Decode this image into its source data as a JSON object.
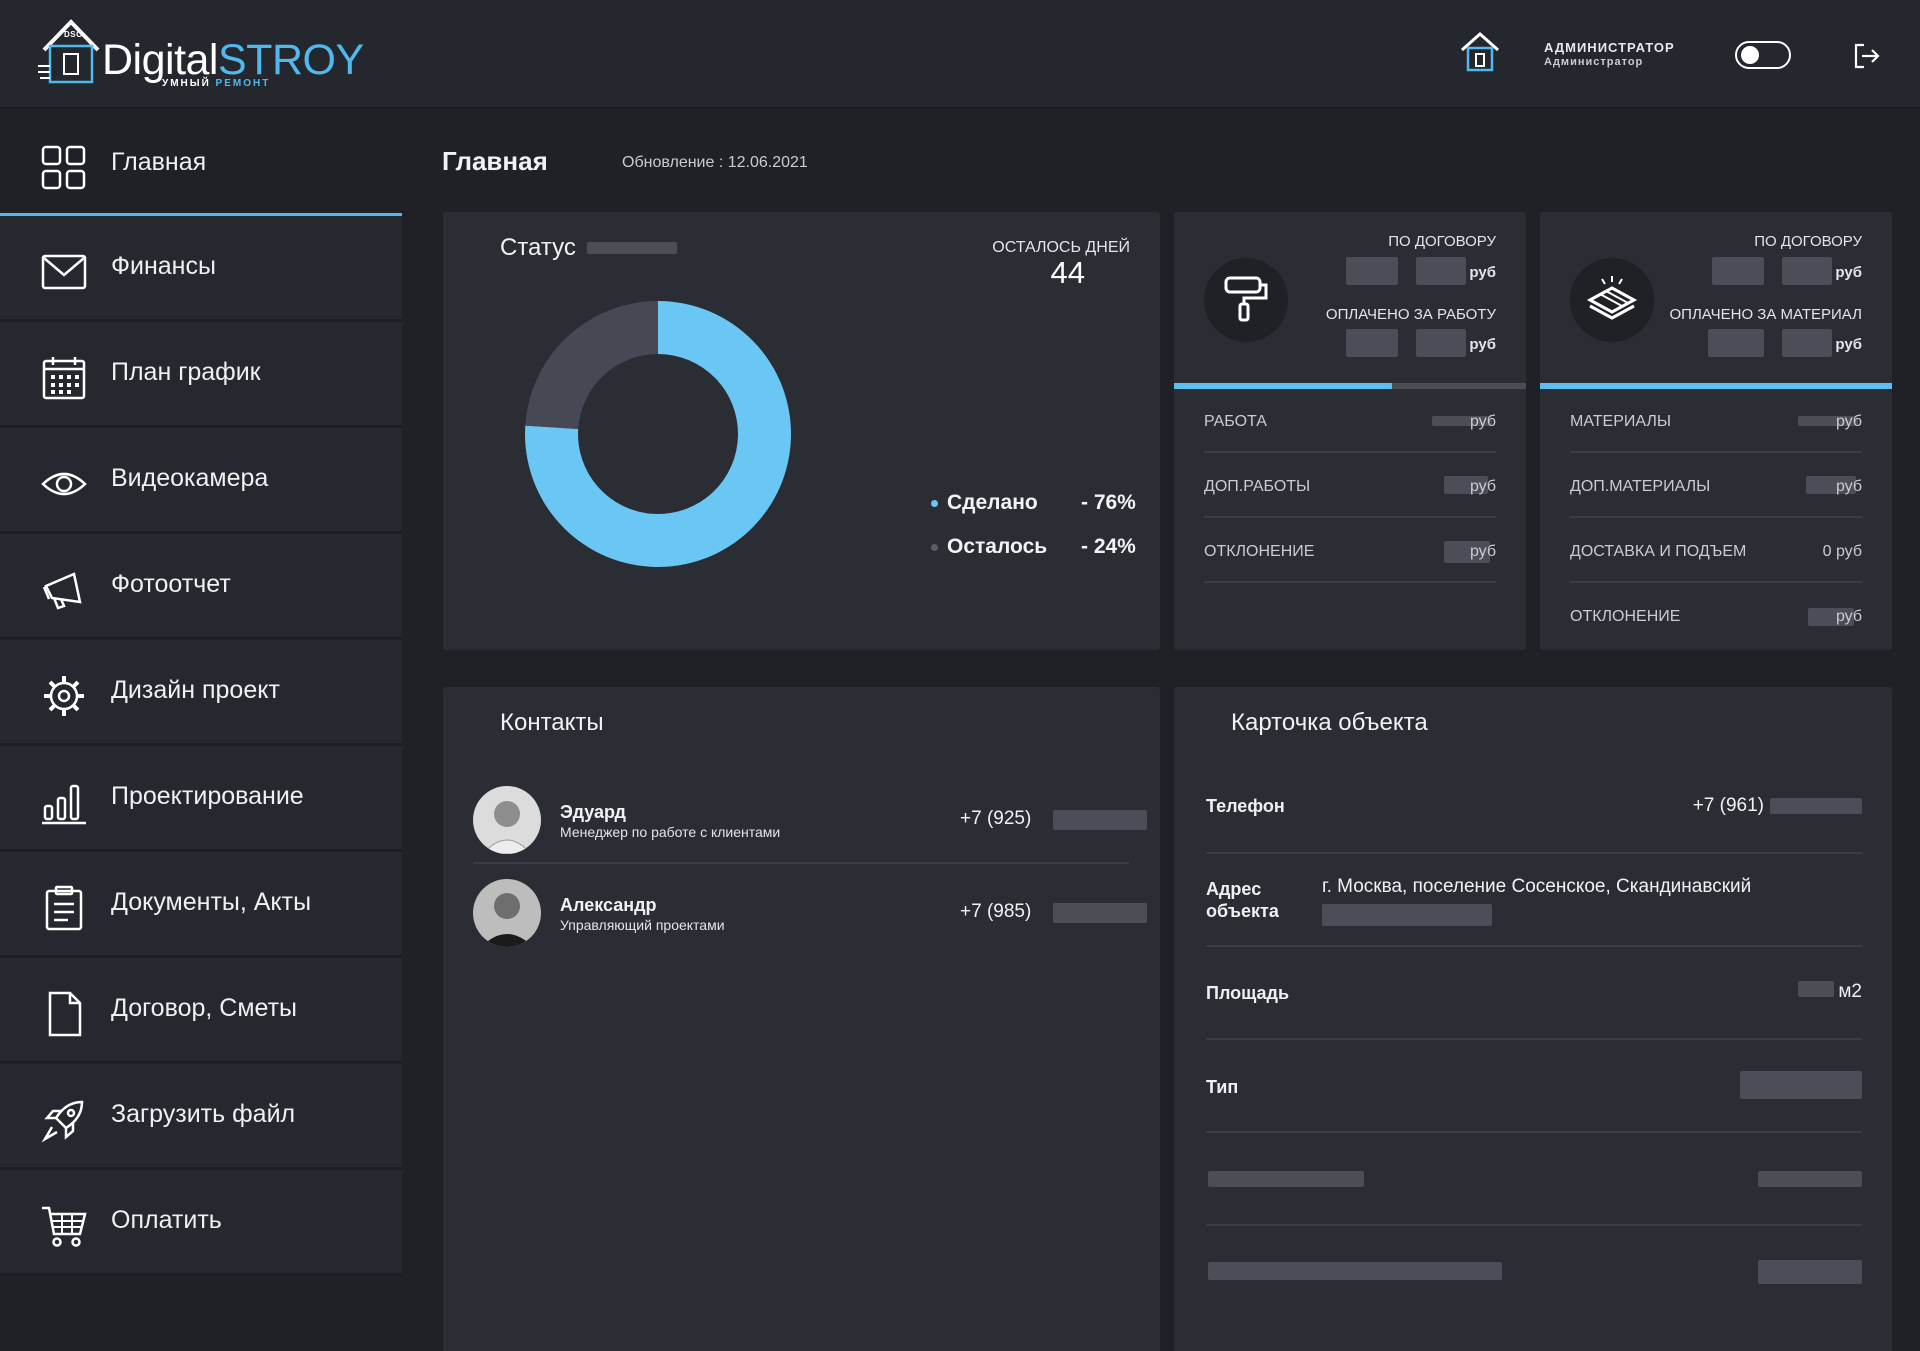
{
  "header": {
    "logo_digital": "Digital",
    "logo_stroy": "STROY",
    "logo_sub_a": "УМНЫЙ",
    "logo_sub_b": "РЕМОНТ",
    "logo_dsc": "DSC",
    "user_role": "АДМИНИСТРАТОР",
    "user_name": "Администратор"
  },
  "sidebar": {
    "items": [
      {
        "label": "Главная",
        "icon": "dashboard-icon"
      },
      {
        "label": "Финансы",
        "icon": "mail-icon"
      },
      {
        "label": "План график",
        "icon": "calendar-icon"
      },
      {
        "label": "Видеокамера",
        "icon": "eye-icon"
      },
      {
        "label": "Фотоотчет",
        "icon": "megaphone-icon"
      },
      {
        "label": "Дизайн проект",
        "icon": "gear-icon"
      },
      {
        "label": "Проектирование",
        "icon": "bar-chart-icon"
      },
      {
        "label": "Документы, Акты",
        "icon": "clipboard-icon"
      },
      {
        "label": "Договор, Сметы",
        "icon": "file-icon"
      },
      {
        "label": "Загрузить файл",
        "icon": "rocket-icon"
      },
      {
        "label": "Оплатить",
        "icon": "cart-icon"
      }
    ]
  },
  "page": {
    "title": "Главная",
    "updated": "Обновление : 12.06.2021"
  },
  "status": {
    "title": "Статус",
    "days_label": "ОСТАЛОСЬ ДНЕЙ",
    "days_value": "44",
    "done_label": "Сделано",
    "done_pct": "- 76%",
    "left_label": "Осталось",
    "left_pct": "- 24%",
    "colors": {
      "done": "#6ac6f2",
      "left": "#464953"
    }
  },
  "chart_data": {
    "type": "pie",
    "categories": [
      "Сделано",
      "Осталось"
    ],
    "values": [
      76,
      24
    ]
  },
  "work": {
    "contract_label": "ПО ДОГОВОРУ",
    "paid_label": "ОПЛАЧЕНО ЗА РАБОТУ",
    "rub": "руб",
    "progress_fraction": 0.62,
    "rows": [
      {
        "k": "РАБОТА",
        "v": "руб"
      },
      {
        "k": "ДОП.РАБОТЫ",
        "v": "руб"
      },
      {
        "k": "ОТКЛОНЕНИЕ",
        "v": "руб"
      }
    ]
  },
  "materials": {
    "contract_label": "ПО ДОГОВОРУ",
    "paid_label": "ОПЛАЧЕНО ЗА МАТЕРИАЛ",
    "rub": "руб",
    "progress_fraction": 1.0,
    "rows": [
      {
        "k": "МАТЕРИАЛЫ",
        "v": "руб"
      },
      {
        "k": "ДОП.МАТЕРИАЛЫ",
        "v": "руб"
      },
      {
        "k": "ДОСТАВКА И ПОДЪЕМ",
        "v": "0  руб"
      },
      {
        "k": "ОТКЛОНЕНИЕ",
        "v": "руб"
      }
    ]
  },
  "contacts": {
    "title": "Контакты",
    "people": [
      {
        "name": "Эдуард",
        "role": "Менеджер по работе с клиентами",
        "phone": "+7 (925)"
      },
      {
        "name": "Александр",
        "role": "Управляющий проектами",
        "phone": "+7 (985)"
      }
    ]
  },
  "object": {
    "title": "Карточка объекта",
    "phone_label": "Телефон",
    "phone_value": "+7 (961)",
    "address_label_1": "Адрес",
    "address_label_2": "объекта",
    "address_value": "г. Москва, поселение Сосенское, Скандинавский",
    "area_label": "Площадь",
    "area_unit": "м2",
    "type_label": "Тип"
  }
}
